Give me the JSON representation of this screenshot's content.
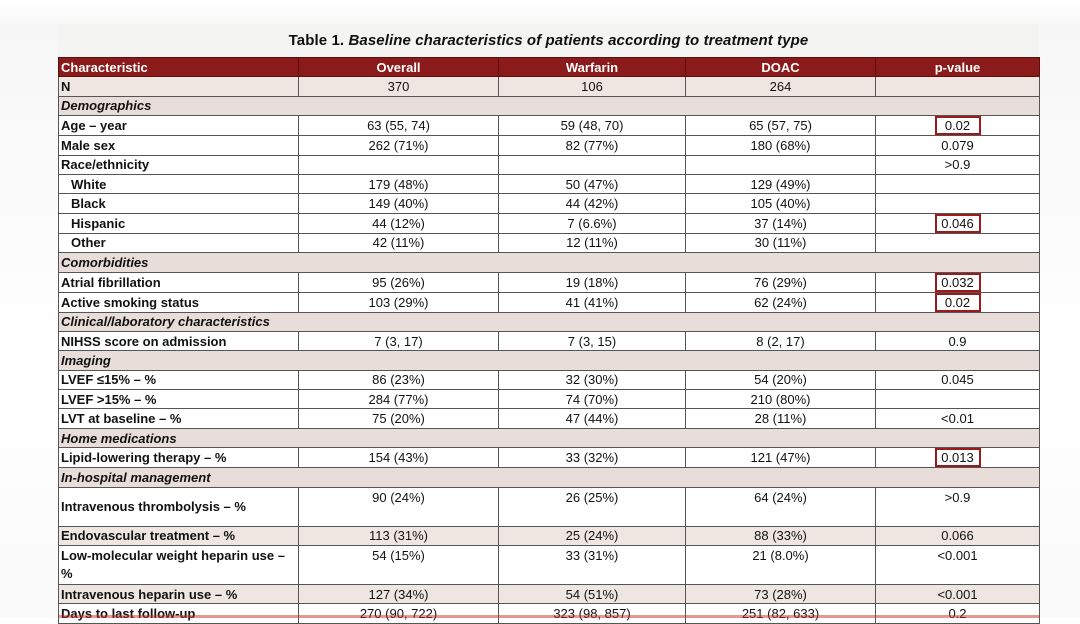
{
  "caption": {
    "prefix": "Table 1. ",
    "title": "Baseline characteristics of patients according to treatment type"
  },
  "columns": [
    "Characteristic",
    "Overall",
    "Warfarin",
    "DOAC",
    "p-value"
  ],
  "rows": [
    {
      "type": "data",
      "label": "N",
      "overall": "370",
      "warfarin": "106",
      "doac": "264",
      "p": "",
      "hl": false,
      "shade": true
    },
    {
      "type": "section",
      "label": "Demographics"
    },
    {
      "type": "data",
      "label": "Age – year",
      "overall": "63 (55, 74)",
      "warfarin": "59 (48, 70)",
      "doac": "65 (57, 75)",
      "p": "0.02",
      "hl": true
    },
    {
      "type": "data",
      "label": "Male sex",
      "overall": "262 (71%)",
      "warfarin": "82 (77%)",
      "doac": "180 (68%)",
      "p": "0.079",
      "hl": false
    },
    {
      "type": "data",
      "label": "Race/ethnicity",
      "overall": "",
      "warfarin": "",
      "doac": "",
      "p": ">0.9",
      "hl": false
    },
    {
      "type": "data",
      "label": "White",
      "indent": true,
      "overall": "179 (48%)",
      "warfarin": "50 (47%)",
      "doac": "129 (49%)",
      "p": "",
      "hl": false
    },
    {
      "type": "data",
      "label": "Black",
      "indent": true,
      "overall": "149 (40%)",
      "warfarin": "44 (42%)",
      "doac": "105 (40%)",
      "p": "",
      "hl": false
    },
    {
      "type": "data",
      "label": "Hispanic",
      "indent": true,
      "overall": "44 (12%)",
      "warfarin": "7 (6.6%)",
      "doac": "37 (14%)",
      "p": "0.046",
      "hl": true
    },
    {
      "type": "data",
      "label": "Other",
      "indent": true,
      "overall": "42 (11%)",
      "warfarin": "12 (11%)",
      "doac": "30 (11%)",
      "p": "",
      "hl": false
    },
    {
      "type": "section",
      "label": "Comorbidities"
    },
    {
      "type": "data",
      "label": "Atrial fibrillation",
      "overall": "95 (26%)",
      "warfarin": "19 (18%)",
      "doac": "76 (29%)",
      "p": "0.032",
      "hl": true
    },
    {
      "type": "data",
      "label": "Active smoking status",
      "overall": "103 (29%)",
      "warfarin": "41 (41%)",
      "doac": "62 (24%)",
      "p": "0.02",
      "hl": true
    },
    {
      "type": "section",
      "label": "Clinical/laboratory characteristics"
    },
    {
      "type": "data",
      "label": "NIHSS score on admission",
      "overall": "7 (3, 17)",
      "warfarin": "7 (3, 15)",
      "doac": "8 (2, 17)",
      "p": "0.9",
      "hl": false
    },
    {
      "type": "section",
      "label": "Imaging"
    },
    {
      "type": "data",
      "label": "LVEF ≤15% – %",
      "overall": "86 (23%)",
      "warfarin": "32 (30%)",
      "doac": "54 (20%)",
      "p": "0.045",
      "hl": false
    },
    {
      "type": "data",
      "label": "LVEF >15% – %",
      "overall": "284 (77%)",
      "warfarin": "74 (70%)",
      "doac": "210 (80%)",
      "p": "",
      "hl": false
    },
    {
      "type": "data",
      "label": "LVT at baseline – %",
      "overall": "75 (20%)",
      "warfarin": "47 (44%)",
      "doac": "28 (11%)",
      "p": "<0.01",
      "hl": false
    },
    {
      "type": "section",
      "label": "Home medications"
    },
    {
      "type": "data",
      "label": "Lipid-lowering therapy – %",
      "overall": "154 (43%)",
      "warfarin": "33 (32%)",
      "doac": "121 (47%)",
      "p": "0.013",
      "hl": true
    },
    {
      "type": "section",
      "label": "In-hospital management"
    },
    {
      "type": "data",
      "label": "Intravenous thrombolysis – %",
      "overall": "90 (24%)",
      "warfarin": "26 (25%)",
      "doac": "64 (24%)",
      "p": ">0.9",
      "hl": false,
      "tall": true
    },
    {
      "type": "data",
      "label": "Endovascular treatment – %",
      "overall": "113 (31%)",
      "warfarin": "25 (24%)",
      "doac": "88 (33%)",
      "p": "0.066",
      "hl": false,
      "shade": true
    },
    {
      "type": "data",
      "label": "Low-molecular weight heparin use – %",
      "overall": "54 (15%)",
      "warfarin": "33 (31%)",
      "doac": "21 (8.0%)",
      "p": "<0.001",
      "hl": false,
      "tall": true
    },
    {
      "type": "data",
      "label": "Intravenous heparin use – %",
      "overall": "127 (34%)",
      "warfarin": "54 (51%)",
      "doac": "73 (28%)",
      "p": "<0.001",
      "hl": false,
      "shade": true
    },
    {
      "type": "data",
      "label": "Days to last follow-up",
      "overall": "270 (90, 722)",
      "warfarin": "323 (98, 857)",
      "doac": "251 (82, 633)",
      "p": "0.2",
      "hl": false
    }
  ]
}
